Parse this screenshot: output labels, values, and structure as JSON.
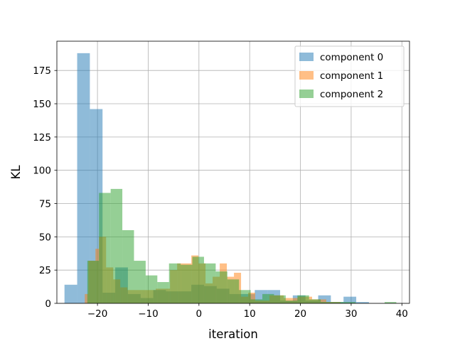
{
  "chart_data": {
    "type": "histogram",
    "xlabel": "iteration",
    "ylabel": "KL",
    "xlim": [
      -28,
      41.5
    ],
    "ylim": [
      0,
      197
    ],
    "xticks": [
      -20,
      -10,
      0,
      10,
      20,
      30,
      40
    ],
    "xtick_labels": [
      "−20",
      "−10",
      "0",
      "10",
      "20",
      "30",
      "40"
    ],
    "yticks": [
      0,
      25,
      50,
      75,
      100,
      125,
      150,
      175
    ],
    "grid": true,
    "legend_position": "upper right",
    "alpha": 0.5,
    "series": [
      {
        "name": "component 0",
        "color": "#1f77b4",
        "bins": [
          {
            "x0": -26.5,
            "x1": -24.0,
            "value": 14
          },
          {
            "x0": -24.0,
            "x1": -21.5,
            "value": 188
          },
          {
            "x0": -21.5,
            "x1": -19.0,
            "value": 146
          },
          {
            "x0": -19.0,
            "x1": -16.5,
            "value": 8
          },
          {
            "x0": -16.5,
            "x1": -14.0,
            "value": 27
          },
          {
            "x0": -14.0,
            "x1": -11.5,
            "value": 7
          },
          {
            "x0": -11.5,
            "x1": -9.0,
            "value": 4
          },
          {
            "x0": -9.0,
            "x1": -6.5,
            "value": 10
          },
          {
            "x0": -6.5,
            "x1": -4.0,
            "value": 9
          },
          {
            "x0": -4.0,
            "x1": -1.5,
            "value": 9
          },
          {
            "x0": -1.5,
            "x1": 1.0,
            "value": 14
          },
          {
            "x0": 1.0,
            "x1": 3.5,
            "value": 13
          },
          {
            "x0": 3.5,
            "x1": 6.0,
            "value": 11
          },
          {
            "x0": 6.0,
            "x1": 8.5,
            "value": 7
          },
          {
            "x0": 8.5,
            "x1": 11.0,
            "value": 7
          },
          {
            "x0": 11.0,
            "x1": 13.5,
            "value": 10
          },
          {
            "x0": 13.5,
            "x1": 16.0,
            "value": 10
          },
          {
            "x0": 16.0,
            "x1": 18.5,
            "value": 2
          },
          {
            "x0": 18.5,
            "x1": 21.0,
            "value": 6
          },
          {
            "x0": 21.0,
            "x1": 23.5,
            "value": 2
          },
          {
            "x0": 23.5,
            "x1": 26.0,
            "value": 6
          },
          {
            "x0": 26.0,
            "x1": 28.5,
            "value": 1
          },
          {
            "x0": 28.5,
            "x1": 31.0,
            "value": 5
          },
          {
            "x0": 31.0,
            "x1": 33.5,
            "value": 1
          }
        ]
      },
      {
        "name": "component 1",
        "color": "#ff7f0e",
        "bins": [
          {
            "x0": -22.5,
            "x1": -21.8,
            "value": 7
          },
          {
            "x0": -21.8,
            "x1": -20.4,
            "value": 32
          },
          {
            "x0": -20.4,
            "x1": -19.7,
            "value": 41
          },
          {
            "x0": -19.7,
            "x1": -18.3,
            "value": 50
          },
          {
            "x0": -18.3,
            "x1": -16.9,
            "value": 27
          },
          {
            "x0": -16.9,
            "x1": -15.5,
            "value": 18
          },
          {
            "x0": -15.5,
            "x1": -14.1,
            "value": 12
          },
          {
            "x0": -14.1,
            "x1": -11.3,
            "value": 10
          },
          {
            "x0": -11.3,
            "x1": -8.5,
            "value": 10
          },
          {
            "x0": -8.5,
            "x1": -5.7,
            "value": 11
          },
          {
            "x0": -5.7,
            "x1": -4.3,
            "value": 25
          },
          {
            "x0": -4.3,
            "x1": -1.5,
            "value": 30
          },
          {
            "x0": -1.5,
            "x1": -0.1,
            "value": 36
          },
          {
            "x0": -0.1,
            "x1": 1.3,
            "value": 30
          },
          {
            "x0": 1.3,
            "x1": 2.7,
            "value": 15
          },
          {
            "x0": 2.7,
            "x1": 4.1,
            "value": 20
          },
          {
            "x0": 4.1,
            "x1": 5.5,
            "value": 30
          },
          {
            "x0": 5.5,
            "x1": 6.9,
            "value": 20
          },
          {
            "x0": 6.9,
            "x1": 8.3,
            "value": 23
          },
          {
            "x0": 8.3,
            "x1": 9.7,
            "value": 5
          },
          {
            "x0": 9.7,
            "x1": 11.1,
            "value": 8
          },
          {
            "x0": 11.1,
            "x1": 13.9,
            "value": 2
          },
          {
            "x0": 13.9,
            "x1": 16.7,
            "value": 6
          },
          {
            "x0": 16.7,
            "x1": 19.5,
            "value": 4
          },
          {
            "x0": 19.5,
            "x1": 22.3,
            "value": 5
          },
          {
            "x0": 22.3,
            "x1": 25.1,
            "value": 3
          },
          {
            "x0": 25.1,
            "x1": 27.9,
            "value": 1
          }
        ]
      },
      {
        "name": "component 2",
        "color": "#2ca02c",
        "bins": [
          {
            "x0": -22.0,
            "x1": -19.7,
            "value": 32
          },
          {
            "x0": -19.7,
            "x1": -17.4,
            "value": 83
          },
          {
            "x0": -17.4,
            "x1": -15.1,
            "value": 86
          },
          {
            "x0": -15.1,
            "x1": -12.8,
            "value": 55
          },
          {
            "x0": -12.8,
            "x1": -10.5,
            "value": 32
          },
          {
            "x0": -10.5,
            "x1": -8.2,
            "value": 21
          },
          {
            "x0": -8.2,
            "x1": -5.9,
            "value": 16
          },
          {
            "x0": -5.9,
            "x1": -3.6,
            "value": 30
          },
          {
            "x0": -3.6,
            "x1": -1.3,
            "value": 29
          },
          {
            "x0": -1.3,
            "x1": 1.0,
            "value": 35
          },
          {
            "x0": 1.0,
            "x1": 3.3,
            "value": 30
          },
          {
            "x0": 3.3,
            "x1": 5.6,
            "value": 24
          },
          {
            "x0": 5.6,
            "x1": 7.9,
            "value": 18
          },
          {
            "x0": 7.9,
            "x1": 10.2,
            "value": 10
          },
          {
            "x0": 10.2,
            "x1": 12.5,
            "value": 3
          },
          {
            "x0": 12.5,
            "x1": 14.8,
            "value": 7
          },
          {
            "x0": 14.8,
            "x1": 17.1,
            "value": 6
          },
          {
            "x0": 17.1,
            "x1": 19.4,
            "value": 2
          },
          {
            "x0": 19.4,
            "x1": 21.7,
            "value": 6
          },
          {
            "x0": 21.7,
            "x1": 24.0,
            "value": 3
          },
          {
            "x0": 24.0,
            "x1": 26.3,
            "value": 1
          },
          {
            "x0": 26.3,
            "x1": 28.6,
            "value": 1
          },
          {
            "x0": 28.6,
            "x1": 30.9,
            "value": 1
          },
          {
            "x0": 36.6,
            "x1": 38.9,
            "value": 1
          }
        ]
      }
    ]
  }
}
